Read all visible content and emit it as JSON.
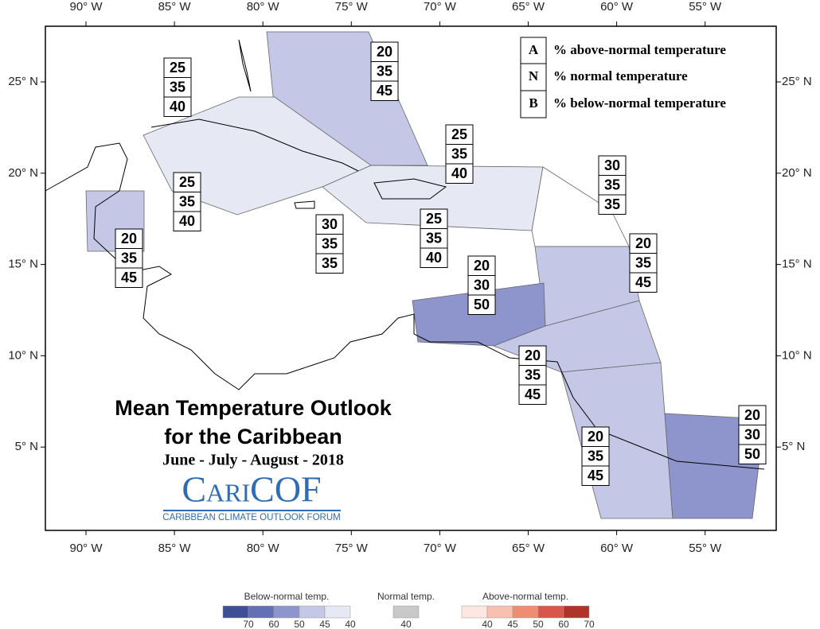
{
  "map": {
    "lon_labels": [
      "90° W",
      "85° W",
      "80° W",
      "75° W",
      "70° W",
      "65° W",
      "60° W",
      "55° W"
    ],
    "lat_labels": [
      "25° N",
      "20° N",
      "15° N",
      "10° N",
      "5° N"
    ]
  },
  "key": [
    {
      "letter": "A",
      "text": "% above-normal temperature"
    },
    {
      "letter": "N",
      "text": "% normal temperature"
    },
    {
      "letter": "B",
      "text": "% below-normal temperature"
    }
  ],
  "title": {
    "line1": "Mean Temperature Outlook",
    "line2": "for the Caribbean",
    "period": "June - July - August - 2018"
  },
  "logo": {
    "name": "CariCOF",
    "tagline": "CARIBBEAN CLIMATE OUTLOOK FORUM"
  },
  "regions": [
    {
      "values": [
        20,
        35,
        45
      ]
    },
    {
      "values": [
        25,
        35,
        40
      ]
    },
    {
      "values": [
        25,
        35,
        40
      ]
    },
    {
      "values": [
        25,
        35,
        40
      ]
    },
    {
      "values": [
        20,
        35,
        45
      ]
    },
    {
      "values": [
        30,
        35,
        35
      ]
    },
    {
      "values": [
        25,
        35,
        40
      ]
    },
    {
      "values": [
        30,
        35,
        35
      ]
    },
    {
      "values": [
        20,
        35,
        45
      ]
    },
    {
      "values": [
        20,
        30,
        50
      ]
    },
    {
      "values": [
        20,
        35,
        45
      ]
    },
    {
      "values": [
        20,
        35,
        45
      ]
    },
    {
      "values": [
        20,
        30,
        50
      ]
    }
  ],
  "legend": {
    "below": {
      "title": "Below-normal temp.",
      "labels": [
        "70",
        "60",
        "50",
        "45",
        "40"
      ]
    },
    "normal": {
      "title": "Normal temp.",
      "labels": [
        "40"
      ]
    },
    "above": {
      "title": "Above-normal temp.",
      "labels": [
        "40",
        "45",
        "50",
        "60",
        "70"
      ]
    }
  }
}
